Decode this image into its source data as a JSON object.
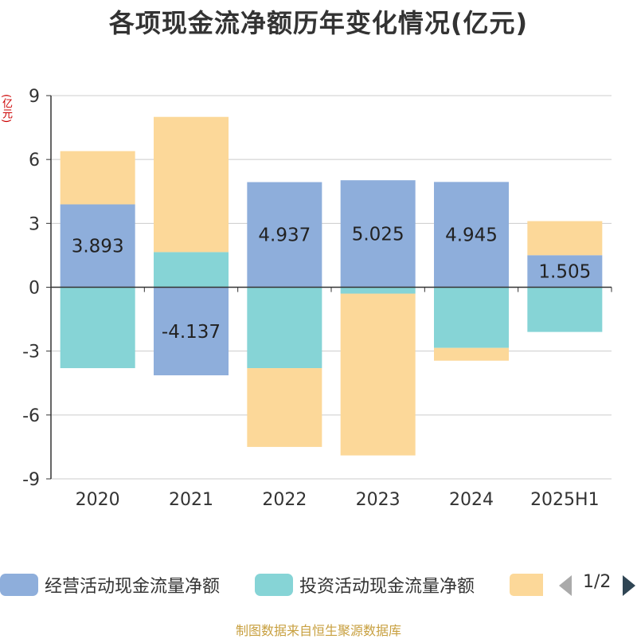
{
  "chart_data": {
    "type": "bar",
    "stacked": true,
    "title": "各项现金流净额历年变化情况(亿元)",
    "ylabel": "(亿元)",
    "xlabel": "",
    "categories": [
      "2020",
      "2021",
      "2022",
      "2023",
      "2024",
      "2025H1"
    ],
    "ylim": [
      -9,
      9
    ],
    "yticks": [
      9,
      6,
      3,
      0,
      -3,
      -6,
      -9
    ],
    "grid": true,
    "series": [
      {
        "name": "经营活动现金流量净额",
        "color": "#8eaedb",
        "values": [
          3.893,
          -4.137,
          4.937,
          5.025,
          4.945,
          1.505
        ],
        "labels": [
          "3.893",
          "-4.137",
          "4.937",
          "5.025",
          "4.945",
          "1.505"
        ]
      },
      {
        "name": "投资活动现金流量净额",
        "color": "#86d4d6",
        "values": [
          -3.8,
          1.65,
          -3.8,
          -0.3,
          -2.85,
          -2.1
        ]
      },
      {
        "name": "",
        "color": "#fcd899",
        "values": [
          2.5,
          6.35,
          -3.7,
          -7.6,
          -0.6,
          1.6
        ]
      }
    ],
    "legend": {
      "position": "bottom",
      "page": "1/2"
    }
  },
  "source": "制图数据来自恒生聚源数据库"
}
